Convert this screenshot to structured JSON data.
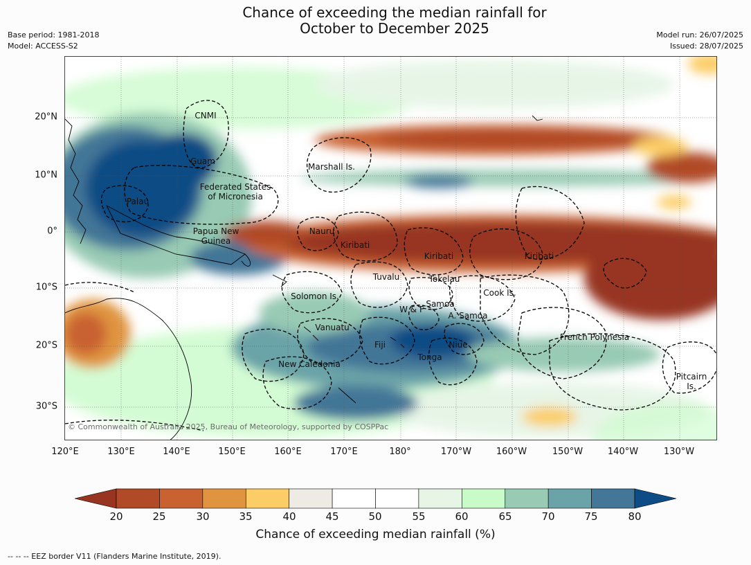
{
  "title_line1": "Chance of exceeding the median rainfall for",
  "title_line2": "October to December 2025",
  "meta_left": {
    "base_period": "Base period: 1981-2018",
    "model": "Model: ACCESS-S2"
  },
  "meta_right": {
    "model_run": "Model run: 26/07/2025",
    "issued": "Issued: 28/07/2025"
  },
  "lat_ticks": [
    "20°N",
    "10°N",
    "0°",
    "10°S",
    "20°S",
    "30°S"
  ],
  "lon_ticks": [
    "120°E",
    "130°E",
    "140°E",
    "150°E",
    "160°E",
    "170°E",
    "180°",
    "170°W",
    "160°W",
    "150°W",
    "140°W",
    "130°W"
  ],
  "region_labels": [
    "CNMI",
    "Guam",
    "Marshall Is.",
    "Federated States\nof Micronesia",
    "Palau",
    "Papua New\nGuinea",
    "Nauru",
    "Kiribati",
    "Kiribati",
    "Kiribati",
    "Tuvalu",
    "Tokelau",
    "Cook Is.",
    "Solomon Is.",
    "Samoa",
    "W & F",
    "A. Samoa",
    "Vanuatu",
    "Fiji",
    "Niue",
    "Tonga",
    "French Polynesia",
    "New Caledonia",
    "Pitcairn\nIs."
  ],
  "copyright": "© Commonwealth of Australia 2025, Bureau of Meteorology, supported by COSPPac",
  "colorbar": {
    "label": "Chance of exceeding median rainfall (%)",
    "ticks": [
      "20",
      "25",
      "30",
      "35",
      "40",
      "45",
      "50",
      "55",
      "60",
      "65",
      "70",
      "75",
      "80"
    ],
    "colors": [
      "#973520",
      "#b14a26",
      "#c96230",
      "#e09440",
      "#fccd66",
      "#eeebe5",
      "#ffffff",
      "#ffffff",
      "#e7f5e7",
      "#c9fbc9",
      "#98cab4",
      "#6aa3a8",
      "#437697",
      "#0e4c85"
    ]
  },
  "footer": "--  --  -- EEZ border V11 (Flanders Marine Institute, 2019).",
  "colors": {
    "dry_strong": "#973520",
    "wet_strong": "#0e4c85",
    "neutral": "#ffffff"
  }
}
